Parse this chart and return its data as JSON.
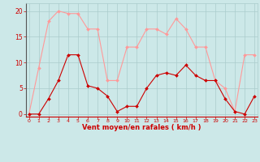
{
  "x": [
    0,
    1,
    2,
    3,
    4,
    5,
    6,
    7,
    8,
    9,
    10,
    11,
    12,
    13,
    14,
    15,
    16,
    17,
    18,
    19,
    20,
    21,
    22,
    23
  ],
  "vent_moyen": [
    0,
    0,
    3,
    6.5,
    11.5,
    11.5,
    5.5,
    5,
    3.5,
    0.5,
    1.5,
    1.5,
    5,
    7.5,
    8,
    7.5,
    9.5,
    7.5,
    6.5,
    6.5,
    3,
    0.5,
    0,
    3.5
  ],
  "rafales": [
    0,
    9,
    18,
    20,
    19.5,
    19.5,
    16.5,
    16.5,
    6.5,
    6.5,
    13,
    13,
    16.5,
    16.5,
    15.5,
    18.5,
    16.5,
    13,
    13,
    6.5,
    5,
    0.5,
    11.5,
    11.5
  ],
  "color_moyen": "#cc0000",
  "color_rafales": "#ff9999",
  "bg_color": "#cce8e8",
  "grid_color": "#aacccc",
  "xlabel": "Vent moyen/en rafales ( km/h )",
  "yticks": [
    0,
    5,
    10,
    15,
    20
  ],
  "ylim": [
    -0.5,
    21.5
  ],
  "xlim": [
    -0.3,
    23.3
  ],
  "xlabel_color": "#cc0000",
  "tick_color": "#cc0000",
  "spine_left_color": "#555555",
  "spine_bottom_color": "#cc0000"
}
